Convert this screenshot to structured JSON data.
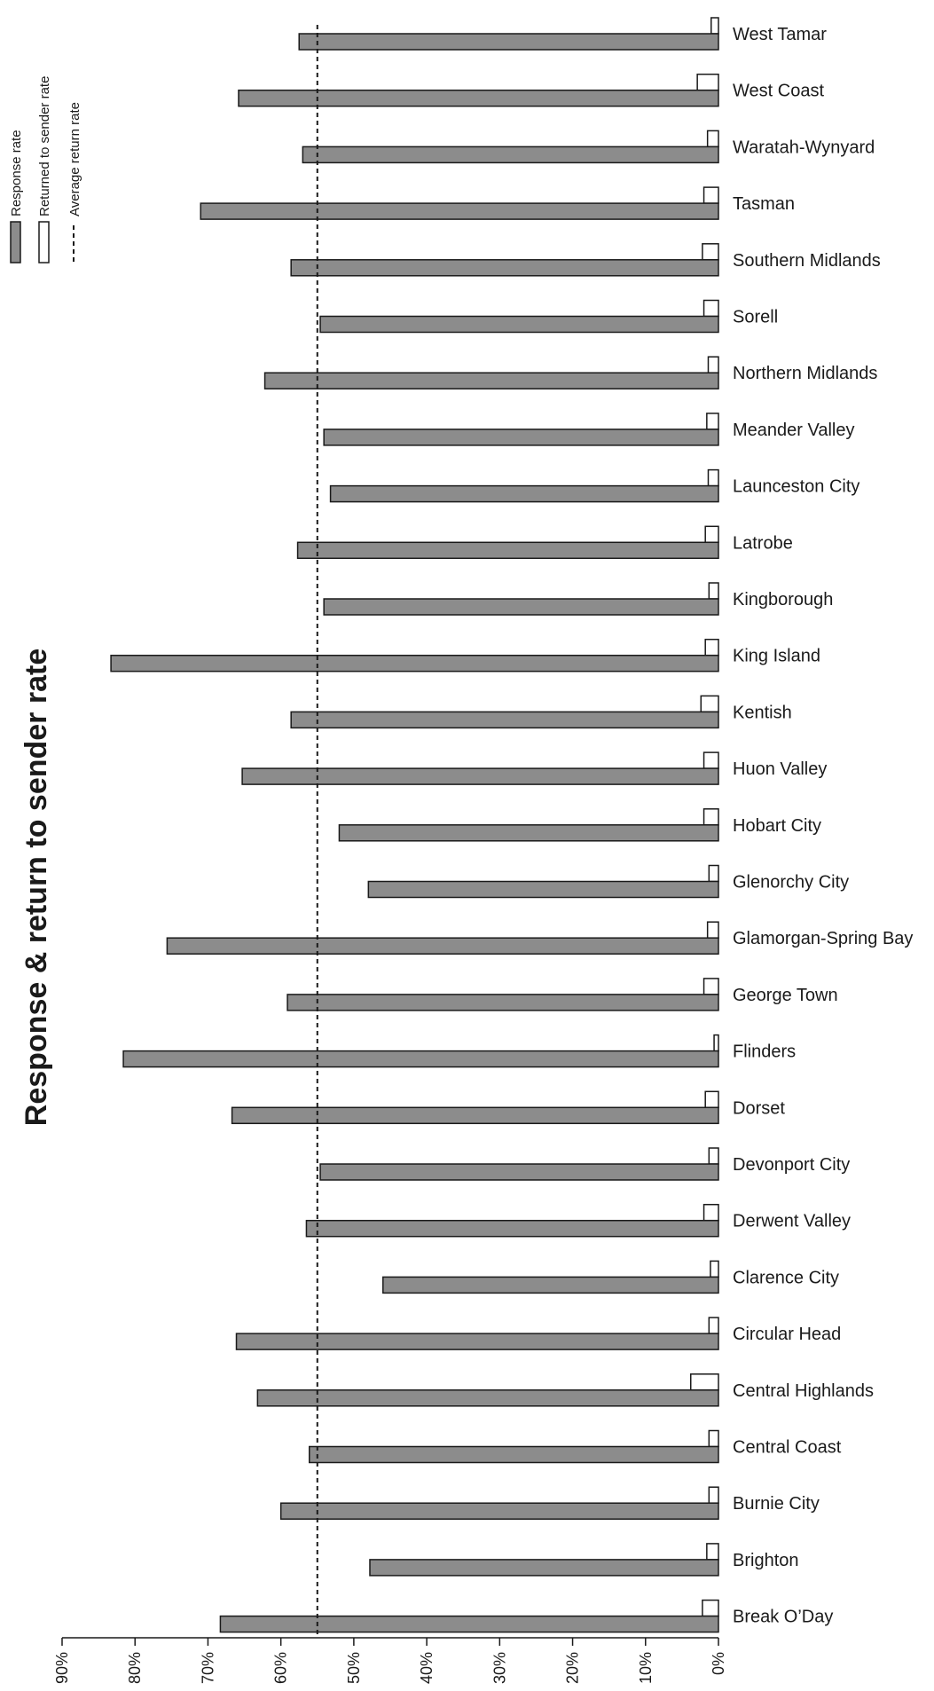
{
  "chart_data": {
    "type": "bar",
    "orientation": "horizontal",
    "title": "Response & return to sender rate",
    "xlim": [
      0,
      90
    ],
    "x_reversed": true,
    "x_ticks": [
      "0%",
      "10%",
      "20%",
      "30%",
      "40%",
      "50%",
      "60%",
      "70%",
      "80%",
      "90%"
    ],
    "average_return_rate": 55,
    "categories": [
      "West Tamar",
      "West Coast",
      "Waratah-Wynyard",
      "Tasman",
      "Southern Midlands",
      "Sorell",
      "Northern Midlands",
      "Meander Valley",
      "Launceston City",
      "Latrobe",
      "Kingborough",
      "King Island",
      "Kentish",
      "Huon Valley",
      "Hobart City",
      "Glenorchy City",
      "Glamorgan-Spring Bay",
      "George Town",
      "Flinders",
      "Dorset",
      "Devonport City",
      "Derwent Valley",
      "Clarence City",
      "Circular Head",
      "Central Highlands",
      "Central Coast",
      "Burnie City",
      "Brighton",
      "Break O’Day"
    ],
    "series": [
      {
        "name": "Response rate",
        "color": "#8c8c8c",
        "values": [
          57.5,
          65.8,
          57,
          71,
          58.6,
          54.6,
          62.2,
          54.1,
          53.2,
          57.7,
          54.1,
          83.3,
          58.6,
          65.3,
          52,
          48,
          75.6,
          59.1,
          81.6,
          66.7,
          54.6,
          56.5,
          46,
          66.1,
          63.2,
          56.1,
          60,
          47.8,
          68.3
        ]
      },
      {
        "name": "Returned to sender rate",
        "color": "#ffffff",
        "values": [
          1,
          2.9,
          1.5,
          2,
          2.2,
          2,
          1.4,
          1.6,
          1.4,
          1.8,
          1.3,
          1.8,
          2.4,
          2,
          2,
          1.3,
          1.5,
          2,
          0.6,
          1.8,
          1.3,
          2,
          1.1,
          1.3,
          3.8,
          1.3,
          1.3,
          1.6,
          2.2
        ]
      }
    ],
    "legend": {
      "placement": "top-left",
      "orientation": "rotated-vertical",
      "entries": [
        "Response rate",
        "Returned to sender rate",
        "Average return rate"
      ]
    }
  }
}
